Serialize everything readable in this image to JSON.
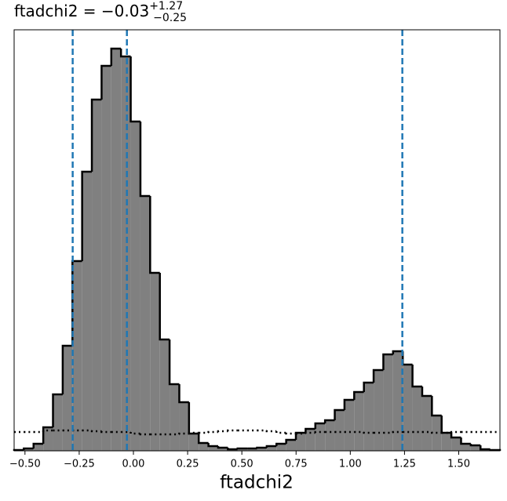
{
  "chart_data": {
    "type": "histogram",
    "title": {
      "main": "ftadchi2 = −0.03",
      "sup": "+1.27",
      "sub": "−0.25"
    },
    "xlabel": "ftadchi2",
    "bins": [
      -0.55,
      -0.5052,
      -0.4604,
      -0.4156,
      -0.3708,
      -0.326,
      -0.2812,
      -0.2364,
      -0.1916,
      -0.1468,
      -0.102,
      -0.0572,
      -0.0124,
      0.0324,
      0.0772,
      0.122,
      0.1668,
      0.2116,
      0.2564,
      0.3012,
      0.346,
      0.3908,
      0.4356,
      0.4804,
      0.5252,
      0.57,
      0.6148,
      0.6596,
      0.7044,
      0.7492,
      0.794,
      0.8388,
      0.8836,
      0.9284,
      0.9732,
      1.018,
      1.0628,
      1.1076,
      1.1524,
      1.1972,
      1.242,
      1.2868,
      1.3316,
      1.3764,
      1.4212,
      1.466,
      1.5108,
      1.5556,
      1.6004,
      1.6452,
      1.69
    ],
    "values": [
      1,
      3,
      9,
      30,
      72,
      134,
      242,
      356,
      448,
      491,
      513,
      503,
      420,
      325,
      227,
      142,
      85,
      62,
      22,
      10,
      6,
      4,
      2,
      3,
      3,
      4,
      6,
      9,
      14,
      23,
      28,
      35,
      39,
      52,
      65,
      75,
      87,
      103,
      123,
      127,
      110,
      82,
      70,
      45,
      23,
      17,
      9,
      7,
      2,
      1
    ],
    "color": "#808080",
    "prior": {
      "values": [
        24,
        24,
        24,
        26,
        26,
        26,
        26,
        26,
        25,
        24,
        24,
        24,
        22,
        21,
        21,
        21,
        21,
        22,
        23,
        23,
        24,
        25,
        26,
        26,
        26,
        26,
        25,
        23,
        22,
        22,
        23,
        24,
        24,
        24,
        24,
        24,
        23,
        23,
        23,
        24,
        24,
        24,
        24,
        23,
        23,
        24,
        24,
        24,
        24,
        24
      ]
    },
    "quantiles": [
      -0.28,
      -0.03,
      1.24
    ],
    "quantile_color": "#1f77b4",
    "xlim": [
      -0.55,
      1.69
    ],
    "ylim": [
      0,
      537
    ],
    "xticks": [
      {
        "value": -0.5,
        "label": "−0.50"
      },
      {
        "value": -0.25,
        "label": "−0.25"
      },
      {
        "value": 0,
        "label": "0.00"
      },
      {
        "value": 0.25,
        "label": "0.25"
      },
      {
        "value": 0.5,
        "label": "0.50"
      },
      {
        "value": 0.75,
        "label": "0.75"
      },
      {
        "value": 1,
        "label": "1.00"
      },
      {
        "value": 1.25,
        "label": "1.25"
      },
      {
        "value": 1.5,
        "label": "1.50"
      }
    ]
  }
}
